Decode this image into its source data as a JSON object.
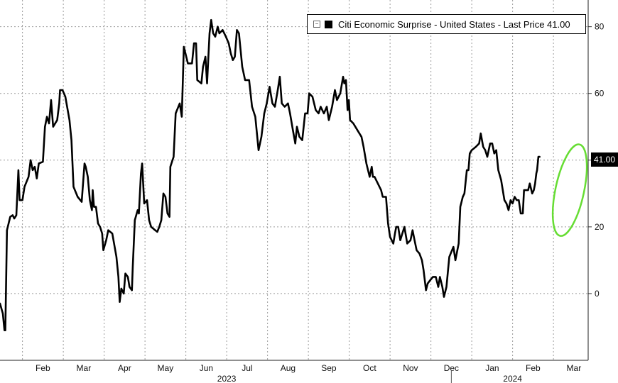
{
  "legend": {
    "toggle_icon": "collapse-icon",
    "text": "Citi Economic Surprise - United States - Last Price 41.00"
  },
  "last_price_tag": "41.00",
  "colors": {
    "line": "#000000",
    "highlight": "#66dd33",
    "grid": "#9a9a9a",
    "background": "#ffffff"
  },
  "chart_data": {
    "type": "line",
    "title": "",
    "xlabel": "",
    "ylabel": "",
    "y_axis_side": "right",
    "ylim": [
      -20,
      88
    ],
    "yticks": [
      0,
      20,
      40,
      60,
      80
    ],
    "grid": true,
    "legend_position": "top-right",
    "x_ticks": [
      {
        "label": "Feb",
        "t": 1.0
      },
      {
        "label": "Mar",
        "t": 2.0
      },
      {
        "label": "Apr",
        "t": 3.0
      },
      {
        "label": "May",
        "t": 4.0
      },
      {
        "label": "Jun",
        "t": 5.0
      },
      {
        "label": "Jul",
        "t": 6.0
      },
      {
        "label": "Aug",
        "t": 7.0
      },
      {
        "label": "Sep",
        "t": 8.0
      },
      {
        "label": "Oct",
        "t": 9.0
      },
      {
        "label": "Nov",
        "t": 10.0
      },
      {
        "label": "Dec",
        "t": 11.0
      },
      {
        "label": "Jan",
        "t": 12.0
      },
      {
        "label": "Feb",
        "t": 13.0
      },
      {
        "label": "Mar",
        "t": 14.0
      }
    ],
    "year_labels": [
      {
        "label": "2023",
        "t": 6.0
      },
      {
        "label": "2024",
        "t": 13.0
      }
    ],
    "year_separator": 11.5,
    "xlim": [
      0.45,
      14.85
    ],
    "highlight_ellipse": {
      "cx": 14.4,
      "cy": 31,
      "rx": 0.35,
      "ry": 14
    },
    "series": [
      {
        "name": "Citi Economic Surprise - United States",
        "last_value": 41.0,
        "points": [
          [
            0.45,
            -3
          ],
          [
            0.52,
            -6
          ],
          [
            0.56,
            -11
          ],
          [
            0.58,
            -11
          ],
          [
            0.62,
            19
          ],
          [
            0.7,
            23
          ],
          [
            0.76,
            23.5
          ],
          [
            0.8,
            22.5
          ],
          [
            0.85,
            23.5
          ],
          [
            0.9,
            37
          ],
          [
            0.93,
            28
          ],
          [
            1.0,
            28
          ],
          [
            1.05,
            32
          ],
          [
            1.15,
            35
          ],
          [
            1.2,
            40
          ],
          [
            1.25,
            37
          ],
          [
            1.3,
            38
          ],
          [
            1.35,
            34.5
          ],
          [
            1.4,
            39
          ],
          [
            1.5,
            39.5
          ],
          [
            1.55,
            50
          ],
          [
            1.6,
            53
          ],
          [
            1.65,
            51
          ],
          [
            1.7,
            58
          ],
          [
            1.75,
            50
          ],
          [
            1.85,
            52
          ],
          [
            1.9,
            57
          ],
          [
            1.92,
            61
          ],
          [
            1.98,
            61
          ],
          [
            2.05,
            59
          ],
          [
            2.15,
            52
          ],
          [
            2.2,
            46
          ],
          [
            2.25,
            32
          ],
          [
            2.35,
            29
          ],
          [
            2.45,
            27.5
          ],
          [
            2.52,
            39
          ],
          [
            2.55,
            38
          ],
          [
            2.6,
            35
          ],
          [
            2.65,
            28
          ],
          [
            2.7,
            25
          ],
          [
            2.72,
            31
          ],
          [
            2.75,
            26
          ],
          [
            2.8,
            26
          ],
          [
            2.85,
            21
          ],
          [
            2.9,
            20
          ],
          [
            2.95,
            18
          ],
          [
            2.98,
            13
          ],
          [
            3.05,
            16
          ],
          [
            3.1,
            19
          ],
          [
            3.2,
            18
          ],
          [
            3.3,
            11
          ],
          [
            3.35,
            5
          ],
          [
            3.38,
            -2.5
          ],
          [
            3.42,
            1.5
          ],
          [
            3.48,
            0
          ],
          [
            3.52,
            6
          ],
          [
            3.58,
            5
          ],
          [
            3.62,
            2
          ],
          [
            3.68,
            1
          ],
          [
            3.7,
            8
          ],
          [
            3.75,
            22
          ],
          [
            3.82,
            25
          ],
          [
            3.85,
            24
          ],
          [
            3.9,
            36
          ],
          [
            3.93,
            39
          ],
          [
            3.98,
            27
          ],
          [
            4.05,
            28
          ],
          [
            4.1,
            22
          ],
          [
            4.15,
            20
          ],
          [
            4.25,
            19
          ],
          [
            4.3,
            18.5
          ],
          [
            4.35,
            20
          ],
          [
            4.4,
            22
          ],
          [
            4.45,
            30
          ],
          [
            4.5,
            29
          ],
          [
            4.55,
            24
          ],
          [
            4.6,
            23
          ],
          [
            4.62,
            38
          ],
          [
            4.7,
            41
          ],
          [
            4.75,
            54
          ],
          [
            4.85,
            57
          ],
          [
            4.9,
            53
          ],
          [
            4.95,
            74
          ],
          [
            5.05,
            69
          ],
          [
            5.15,
            69
          ],
          [
            5.2,
            75
          ],
          [
            5.25,
            75
          ],
          [
            5.28,
            64
          ],
          [
            5.38,
            63
          ],
          [
            5.42,
            68
          ],
          [
            5.48,
            71
          ],
          [
            5.52,
            63
          ],
          [
            5.58,
            78
          ],
          [
            5.62,
            82
          ],
          [
            5.67,
            78
          ],
          [
            5.72,
            77
          ],
          [
            5.78,
            80
          ],
          [
            5.82,
            78
          ],
          [
            5.9,
            79
          ],
          [
            5.98,
            77
          ],
          [
            6.05,
            75
          ],
          [
            6.1,
            72
          ],
          [
            6.15,
            70
          ],
          [
            6.2,
            71
          ],
          [
            6.25,
            79
          ],
          [
            6.3,
            78
          ],
          [
            6.38,
            68
          ],
          [
            6.45,
            64
          ],
          [
            6.55,
            64
          ],
          [
            6.62,
            56
          ],
          [
            6.7,
            53
          ],
          [
            6.78,
            43
          ],
          [
            6.85,
            47
          ],
          [
            6.92,
            54
          ],
          [
            6.98,
            57
          ],
          [
            7.05,
            62
          ],
          [
            7.12,
            57
          ],
          [
            7.18,
            56
          ],
          [
            7.25,
            61
          ],
          [
            7.3,
            65
          ],
          [
            7.35,
            57
          ],
          [
            7.42,
            56
          ],
          [
            7.5,
            57
          ],
          [
            7.55,
            54
          ],
          [
            7.62,
            49
          ],
          [
            7.68,
            45
          ],
          [
            7.72,
            50
          ],
          [
            7.78,
            47
          ],
          [
            7.85,
            46
          ],
          [
            7.92,
            54
          ],
          [
            7.98,
            54
          ],
          [
            8.02,
            60
          ],
          [
            8.1,
            59
          ],
          [
            8.18,
            55
          ],
          [
            8.25,
            54
          ],
          [
            8.3,
            56
          ],
          [
            8.38,
            54
          ],
          [
            8.45,
            56
          ],
          [
            8.5,
            52
          ],
          [
            8.58,
            56
          ],
          [
            8.65,
            61
          ],
          [
            8.7,
            58
          ],
          [
            8.78,
            60
          ],
          [
            8.85,
            65
          ],
          [
            8.88,
            63
          ],
          [
            8.92,
            64
          ],
          [
            8.96,
            55
          ],
          [
            8.99,
            58
          ],
          [
            9.02,
            52
          ],
          [
            9.1,
            51
          ],
          [
            9.2,
            49
          ],
          [
            9.3,
            47
          ],
          [
            9.35,
            44
          ],
          [
            9.42,
            39
          ],
          [
            9.46,
            37
          ],
          [
            9.5,
            35
          ],
          [
            9.55,
            38
          ],
          [
            9.58,
            35
          ],
          [
            9.62,
            35
          ],
          [
            9.7,
            33
          ],
          [
            9.78,
            31
          ],
          [
            9.82,
            29
          ],
          [
            9.9,
            29
          ],
          [
            9.95,
            21
          ],
          [
            10.0,
            17
          ],
          [
            10.08,
            15
          ],
          [
            10.12,
            18
          ],
          [
            10.15,
            20
          ],
          [
            10.2,
            20
          ],
          [
            10.25,
            16
          ],
          [
            10.3,
            18
          ],
          [
            10.35,
            20
          ],
          [
            10.42,
            15
          ],
          [
            10.5,
            16
          ],
          [
            10.55,
            19
          ],
          [
            10.6,
            16
          ],
          [
            10.65,
            13
          ],
          [
            10.72,
            12
          ],
          [
            10.78,
            10
          ],
          [
            10.82,
            7
          ],
          [
            10.88,
            1
          ],
          [
            10.92,
            3
          ],
          [
            10.98,
            4
          ],
          [
            11.05,
            5
          ],
          [
            11.12,
            5
          ],
          [
            11.18,
            2
          ],
          [
            11.22,
            5
          ],
          [
            11.28,
            2
          ],
          [
            11.32,
            -1
          ],
          [
            11.38,
            2
          ],
          [
            11.45,
            11
          ],
          [
            11.55,
            14
          ],
          [
            11.6,
            10
          ],
          [
            11.68,
            15
          ],
          [
            11.72,
            26
          ],
          [
            11.78,
            29
          ],
          [
            11.82,
            30
          ],
          [
            11.88,
            37
          ],
          [
            11.92,
            37
          ],
          [
            11.95,
            42
          ],
          [
            12.0,
            43
          ],
          [
            12.1,
            44
          ],
          [
            12.18,
            45
          ],
          [
            12.22,
            48
          ],
          [
            12.28,
            44
          ],
          [
            12.33,
            43
          ],
          [
            12.38,
            41
          ],
          [
            12.45,
            45
          ],
          [
            12.5,
            45
          ],
          [
            12.55,
            42
          ],
          [
            12.6,
            43
          ],
          [
            12.65,
            37
          ],
          [
            12.72,
            34
          ],
          [
            12.8,
            28
          ],
          [
            12.85,
            27
          ],
          [
            12.9,
            25
          ],
          [
            12.95,
            28
          ],
          [
            13.0,
            27
          ],
          [
            13.05,
            29
          ],
          [
            13.1,
            28
          ],
          [
            13.15,
            28
          ],
          [
            13.2,
            24
          ],
          [
            13.25,
            24
          ],
          [
            13.28,
            31
          ],
          [
            13.32,
            31
          ],
          [
            13.38,
            31
          ],
          [
            13.42,
            33
          ],
          [
            13.48,
            30
          ],
          [
            13.52,
            31
          ],
          [
            13.55,
            33
          ],
          [
            13.58,
            36
          ],
          [
            13.6,
            37
          ],
          [
            13.63,
            41
          ],
          [
            13.66,
            41
          ]
        ]
      }
    ]
  }
}
